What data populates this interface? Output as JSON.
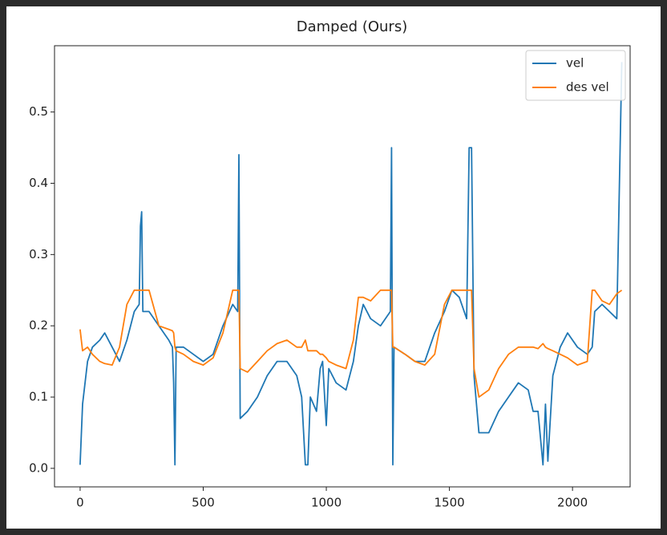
{
  "chart_data": {
    "type": "line",
    "title": "Damped (Ours)",
    "x": [
      0,
      10,
      30,
      50,
      80,
      100,
      130,
      160,
      190,
      220,
      240,
      245,
      250,
      255,
      280,
      320,
      360,
      375,
      380,
      385,
      390,
      420,
      460,
      500,
      540,
      580,
      620,
      640,
      645,
      650,
      680,
      720,
      760,
      800,
      840,
      880,
      900,
      915,
      925,
      935,
      960,
      975,
      985,
      1000,
      1010,
      1040,
      1080,
      1110,
      1130,
      1150,
      1180,
      1220,
      1260,
      1265,
      1270,
      1275,
      1320,
      1360,
      1400,
      1440,
      1480,
      1510,
      1540,
      1570,
      1580,
      1590,
      1600,
      1620,
      1660,
      1700,
      1740,
      1780,
      1820,
      1840,
      1860,
      1880,
      1890,
      1900,
      1920,
      1950,
      1980,
      2020,
      2060,
      2080,
      2090,
      2120,
      2150,
      2180,
      2200
    ],
    "series": [
      {
        "name": "vel",
        "color": "#1f77b4",
        "values": [
          0.005,
          0.09,
          0.15,
          0.17,
          0.18,
          0.19,
          0.17,
          0.15,
          0.18,
          0.22,
          0.23,
          0.34,
          0.36,
          0.22,
          0.22,
          0.2,
          0.18,
          0.17,
          0.12,
          0.005,
          0.17,
          0.17,
          0.16,
          0.15,
          0.16,
          0.2,
          0.23,
          0.22,
          0.44,
          0.07,
          0.08,
          0.1,
          0.13,
          0.15,
          0.15,
          0.13,
          0.1,
          0.005,
          0.005,
          0.1,
          0.08,
          0.14,
          0.15,
          0.06,
          0.14,
          0.12,
          0.11,
          0.15,
          0.2,
          0.23,
          0.21,
          0.2,
          0.22,
          0.45,
          0.005,
          0.17,
          0.16,
          0.15,
          0.15,
          0.19,
          0.22,
          0.25,
          0.24,
          0.21,
          0.45,
          0.45,
          0.13,
          0.05,
          0.05,
          0.08,
          0.1,
          0.12,
          0.11,
          0.08,
          0.08,
          0.005,
          0.09,
          0.01,
          0.13,
          0.17,
          0.19,
          0.17,
          0.16,
          0.17,
          0.22,
          0.23,
          0.22,
          0.21,
          0.57
        ]
      },
      {
        "name": "des vel",
        "color": "#ff7f0e",
        "values": [
          0.195,
          0.165,
          0.17,
          0.16,
          0.15,
          0.147,
          0.145,
          0.17,
          0.23,
          0.25,
          0.25,
          0.25,
          0.25,
          0.25,
          0.25,
          0.2,
          0.195,
          0.193,
          0.19,
          0.17,
          0.165,
          0.16,
          0.15,
          0.145,
          0.155,
          0.19,
          0.25,
          0.25,
          0.25,
          0.14,
          0.135,
          0.15,
          0.165,
          0.175,
          0.18,
          0.17,
          0.17,
          0.18,
          0.165,
          0.165,
          0.165,
          0.16,
          0.16,
          0.155,
          0.15,
          0.145,
          0.14,
          0.18,
          0.24,
          0.24,
          0.235,
          0.25,
          0.25,
          0.25,
          0.17,
          0.17,
          0.16,
          0.15,
          0.145,
          0.16,
          0.23,
          0.25,
          0.25,
          0.25,
          0.25,
          0.25,
          0.14,
          0.1,
          0.11,
          0.14,
          0.16,
          0.17,
          0.17,
          0.17,
          0.168,
          0.175,
          0.17,
          0.168,
          0.165,
          0.16,
          0.155,
          0.145,
          0.15,
          0.25,
          0.25,
          0.235,
          0.23,
          0.245,
          0.25
        ]
      }
    ],
    "xlim": [
      -104,
      2234
    ],
    "ylim": [
      -0.026,
      0.593
    ],
    "xticks": [
      0,
      500,
      1000,
      1500,
      2000
    ],
    "yticks": [
      {
        "value": 0,
        "label": "0.0"
      },
      0.1,
      0.2,
      0.3,
      0.4,
      0.5
    ],
    "legend": "upper right"
  }
}
